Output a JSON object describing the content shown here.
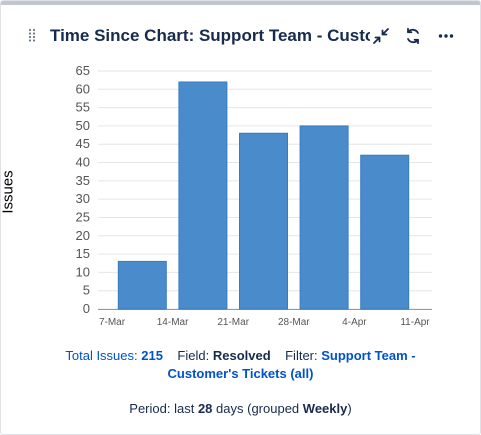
{
  "gadget": {
    "title": "Time Since Chart: Support Team - Custo...",
    "icons": [
      "drag-handle-icon",
      "minimize-icon",
      "refresh-icon",
      "more-icon"
    ]
  },
  "chart_data": {
    "type": "bar",
    "categories": [
      "7-Mar",
      "14-Mar",
      "21-Mar",
      "28-Mar",
      "4-Apr"
    ],
    "x_tick_labels": [
      "7-Mar",
      "14-Mar",
      "21-Mar",
      "28-Mar",
      "4-Apr",
      "11-Apr"
    ],
    "values": [
      13,
      62,
      48,
      50,
      42
    ],
    "ylabel": "Issues",
    "ylim": [
      0,
      65
    ],
    "y_ticks": [
      0,
      5,
      10,
      15,
      20,
      25,
      30,
      35,
      40,
      45,
      50,
      55,
      60,
      65
    ],
    "grid": true,
    "bar_color": "#4a8ccb"
  },
  "summary": {
    "total_label": "Total Issues:",
    "total_value": "215",
    "field_label": "Field:",
    "field_value": "Resolved",
    "filter_label": "Filter:",
    "filter_value_1": "Support Team -",
    "filter_value_2": "Customer's Tickets (all)",
    "period_label": "Period: last",
    "period_days": "28",
    "period_mid": "days (grouped",
    "period_group": "Weekly",
    "period_end": ")"
  }
}
